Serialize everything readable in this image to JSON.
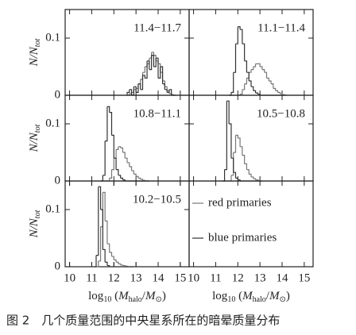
{
  "chart_data": [
    {
      "type": "histogram",
      "label": "11.4−11.7",
      "xlim": [
        9.8,
        15.4
      ],
      "xticks": [
        10,
        11,
        12,
        13,
        14,
        15
      ],
      "ylim": [
        0,
        0.15
      ],
      "yticks": [
        0,
        0.1
      ],
      "bins": [
        12.6,
        12.7,
        12.8,
        12.9,
        13.0,
        13.1,
        13.2,
        13.3,
        13.4,
        13.5,
        13.6,
        13.7,
        13.8,
        13.9,
        14.0,
        14.1,
        14.2,
        14.3,
        14.4,
        14.5,
        14.6,
        14.7,
        14.8
      ],
      "series": [
        {
          "name": "red primaries",
          "color": "#777",
          "values": [
            0,
            0.003,
            0.005,
            0.01,
            0.012,
            0.02,
            0.028,
            0.04,
            0.05,
            0.055,
            0.065,
            0.075,
            0.07,
            0.06,
            0.055,
            0.04,
            0.025,
            0.015,
            0.008,
            0.003,
            0.001,
            0
          ]
        },
        {
          "name": "blue primaries",
          "color": "#333",
          "values": [
            0.005,
            0.01,
            0,
            0.015,
            0.005,
            0.02,
            0.01,
            0.035,
            0.03,
            0.06,
            0.045,
            0.07,
            0.05,
            0.065,
            0.03,
            0.05,
            0.02,
            0.01,
            0.005,
            0.01,
            0,
            0
          ]
        }
      ]
    },
    {
      "type": "histogram",
      "label": "11.1−11.4",
      "xlim": [
        9.8,
        15.4
      ],
      "xticks": [
        10,
        11,
        12,
        13,
        14,
        15
      ],
      "ylim": [
        0,
        0.15
      ],
      "yticks": [
        0,
        0.1
      ],
      "bins": [
        11.6,
        11.7,
        11.8,
        11.9,
        12.0,
        12.1,
        12.2,
        12.3,
        12.4,
        12.5,
        12.6,
        12.7,
        12.8,
        12.9,
        13.0,
        13.1,
        13.2,
        13.3,
        13.4,
        13.5,
        13.6,
        13.7,
        13.8,
        13.9,
        14.0,
        14.1,
        14.2
      ],
      "series": [
        {
          "name": "red primaries",
          "color": "#777",
          "values": [
            0,
            0,
            0,
            0,
            0,
            0.002,
            0.01,
            0.02,
            0.03,
            0.04,
            0.045,
            0.05,
            0.055,
            0.055,
            0.05,
            0.045,
            0.04,
            0.03,
            0.025,
            0.02,
            0.012,
            0.008,
            0.005,
            0.003,
            0.001,
            0
          ]
        },
        {
          "name": "blue primaries",
          "color": "#333",
          "values": [
            0,
            0.005,
            0.04,
            0.09,
            0.12,
            0.115,
            0.09,
            0.06,
            0.04,
            0.025,
            0.015,
            0.008,
            0.004,
            0.002,
            0,
            0,
            0,
            0,
            0,
            0,
            0,
            0,
            0,
            0,
            0,
            0
          ]
        }
      ]
    },
    {
      "type": "histogram",
      "label": "10.8−11.1",
      "xlim": [
        9.8,
        15.4
      ],
      "xticks": [
        10,
        11,
        12,
        13,
        14,
        15
      ],
      "ylim": [
        0,
        0.15
      ],
      "yticks": [
        0,
        0.1
      ],
      "bins": [
        11.4,
        11.5,
        11.6,
        11.7,
        11.8,
        11.9,
        12.0,
        12.1,
        12.2,
        12.3,
        12.4,
        12.5,
        12.6,
        12.7,
        12.8,
        12.9,
        13.0,
        13.1,
        13.2,
        13.3,
        13.4,
        13.5,
        13.6
      ],
      "series": [
        {
          "name": "red primaries",
          "color": "#777",
          "values": [
            0,
            0,
            0,
            0,
            0.005,
            0.02,
            0.04,
            0.055,
            0.06,
            0.058,
            0.05,
            0.04,
            0.032,
            0.025,
            0.018,
            0.012,
            0.008,
            0.005,
            0.003,
            0.001,
            0,
            0
          ]
        },
        {
          "name": "blue primaries",
          "color": "#333",
          "values": [
            0,
            0.01,
            0.07,
            0.13,
            0.12,
            0.08,
            0.04,
            0.02,
            0.01,
            0.005,
            0.002,
            0,
            0,
            0,
            0,
            0,
            0,
            0,
            0,
            0,
            0,
            0
          ]
        }
      ]
    },
    {
      "type": "histogram",
      "label": "10.5−10.8",
      "xlim": [
        9.8,
        15.4
      ],
      "xticks": [
        10,
        11,
        12,
        13,
        14,
        15
      ],
      "ylim": [
        0,
        0.15
      ],
      "yticks": [
        0,
        0.1
      ],
      "bins": [
        11.3,
        11.4,
        11.5,
        11.6,
        11.7,
        11.8,
        11.9,
        12.0,
        12.1,
        12.2,
        12.3,
        12.4,
        12.5,
        12.6,
        12.7,
        12.8,
        12.9,
        13.0,
        13.1
      ],
      "series": [
        {
          "name": "red primaries",
          "color": "#777",
          "values": [
            0,
            0,
            0,
            0,
            0.01,
            0.05,
            0.08,
            0.075,
            0.06,
            0.045,
            0.03,
            0.02,
            0.012,
            0.007,
            0.004,
            0.002,
            0.001,
            0
          ]
        },
        {
          "name": "blue primaries",
          "color": "#333",
          "values": [
            0,
            0.02,
            0.14,
            0.1,
            0.04,
            0.015,
            0.005,
            0.002,
            0,
            0,
            0,
            0,
            0,
            0,
            0,
            0,
            0,
            0
          ]
        }
      ]
    },
    {
      "type": "histogram",
      "label": "10.2−10.5",
      "xlim": [
        9.8,
        15.4
      ],
      "xticks": [
        10,
        11,
        12,
        13,
        14,
        15
      ],
      "ylim": [
        0,
        0.15
      ],
      "yticks": [
        0,
        0.1
      ],
      "bins": [
        11.1,
        11.2,
        11.3,
        11.4,
        11.5,
        11.6,
        11.7,
        11.8,
        11.9,
        12.0,
        12.1,
        12.2,
        12.3,
        12.4,
        12.5,
        12.6,
        12.7,
        12.8,
        12.9
      ],
      "series": [
        {
          "name": "red primaries",
          "color": "#777",
          "values": [
            0,
            0,
            0.01,
            0.07,
            0.13,
            0.08,
            0.04,
            0.025,
            0.018,
            0.012,
            0.008,
            0.005,
            0.003,
            0.002,
            0.001,
            0,
            0,
            0
          ]
        },
        {
          "name": "blue primaries",
          "color": "#333",
          "values": [
            0,
            0.02,
            0.14,
            0.1,
            0.03,
            0.008,
            0.002,
            0,
            0,
            0,
            0,
            0,
            0,
            0,
            0,
            0,
            0,
            0
          ]
        }
      ]
    }
  ],
  "ylabel": {
    "main": "N/N",
    "sub": "tot"
  },
  "xlabel": [
    {
      "text": "log"
    },
    {
      "text": "10",
      "sub": true
    },
    {
      "text": " ("
    },
    {
      "text": "M",
      "italic": true
    },
    {
      "text": "halo",
      "sub": true
    },
    {
      "text": "/"
    },
    {
      "text": "M",
      "italic": true
    },
    {
      "text": "⊙",
      "sub": true
    },
    {
      "text": ")"
    }
  ],
  "caption": "图 2　几个质量范围的中央星系所在的暗晕质量分布"
}
